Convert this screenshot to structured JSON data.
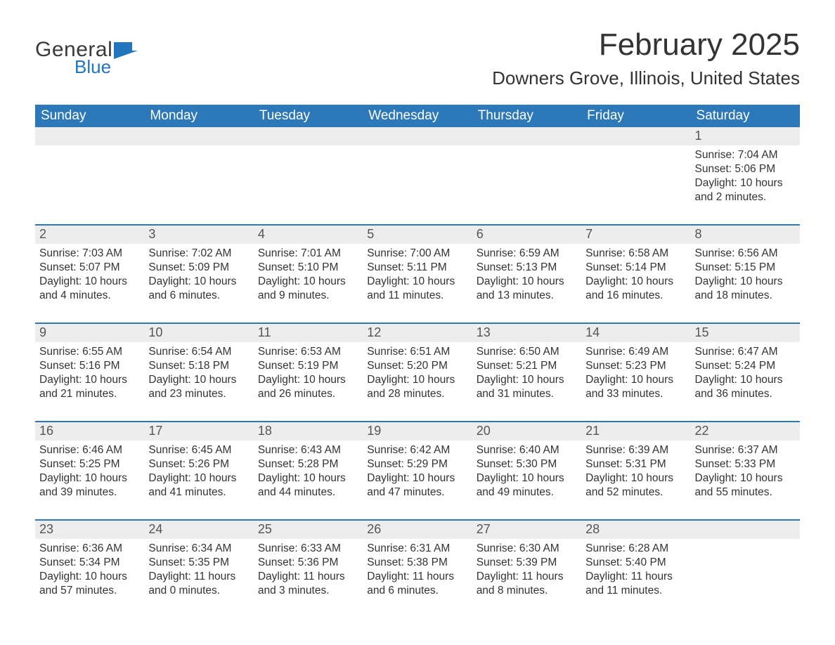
{
  "logo": {
    "word1": "General",
    "word2": "Blue",
    "flag_color": "#2176bd",
    "text_color_dark": "#3a3a3a"
  },
  "title": "February 2025",
  "location": "Downers Grove, Illinois, United States",
  "header_bg": "#2d78b9",
  "daynum_bg": "#ededed",
  "divider_color": "#2d78b9",
  "weekdays": [
    "Sunday",
    "Monday",
    "Tuesday",
    "Wednesday",
    "Thursday",
    "Friday",
    "Saturday"
  ],
  "weeks": [
    [
      null,
      null,
      null,
      null,
      null,
      null,
      {
        "n": "1",
        "sunrise": "Sunrise: 7:04 AM",
        "sunset": "Sunset: 5:06 PM",
        "daylight": "Daylight: 10 hours and 2 minutes."
      }
    ],
    [
      {
        "n": "2",
        "sunrise": "Sunrise: 7:03 AM",
        "sunset": "Sunset: 5:07 PM",
        "daylight": "Daylight: 10 hours and 4 minutes."
      },
      {
        "n": "3",
        "sunrise": "Sunrise: 7:02 AM",
        "sunset": "Sunset: 5:09 PM",
        "daylight": "Daylight: 10 hours and 6 minutes."
      },
      {
        "n": "4",
        "sunrise": "Sunrise: 7:01 AM",
        "sunset": "Sunset: 5:10 PM",
        "daylight": "Daylight: 10 hours and 9 minutes."
      },
      {
        "n": "5",
        "sunrise": "Sunrise: 7:00 AM",
        "sunset": "Sunset: 5:11 PM",
        "daylight": "Daylight: 10 hours and 11 minutes."
      },
      {
        "n": "6",
        "sunrise": "Sunrise: 6:59 AM",
        "sunset": "Sunset: 5:13 PM",
        "daylight": "Daylight: 10 hours and 13 minutes."
      },
      {
        "n": "7",
        "sunrise": "Sunrise: 6:58 AM",
        "sunset": "Sunset: 5:14 PM",
        "daylight": "Daylight: 10 hours and 16 minutes."
      },
      {
        "n": "8",
        "sunrise": "Sunrise: 6:56 AM",
        "sunset": "Sunset: 5:15 PM",
        "daylight": "Daylight: 10 hours and 18 minutes."
      }
    ],
    [
      {
        "n": "9",
        "sunrise": "Sunrise: 6:55 AM",
        "sunset": "Sunset: 5:16 PM",
        "daylight": "Daylight: 10 hours and 21 minutes."
      },
      {
        "n": "10",
        "sunrise": "Sunrise: 6:54 AM",
        "sunset": "Sunset: 5:18 PM",
        "daylight": "Daylight: 10 hours and 23 minutes."
      },
      {
        "n": "11",
        "sunrise": "Sunrise: 6:53 AM",
        "sunset": "Sunset: 5:19 PM",
        "daylight": "Daylight: 10 hours and 26 minutes."
      },
      {
        "n": "12",
        "sunrise": "Sunrise: 6:51 AM",
        "sunset": "Sunset: 5:20 PM",
        "daylight": "Daylight: 10 hours and 28 minutes."
      },
      {
        "n": "13",
        "sunrise": "Sunrise: 6:50 AM",
        "sunset": "Sunset: 5:21 PM",
        "daylight": "Daylight: 10 hours and 31 minutes."
      },
      {
        "n": "14",
        "sunrise": "Sunrise: 6:49 AM",
        "sunset": "Sunset: 5:23 PM",
        "daylight": "Daylight: 10 hours and 33 minutes."
      },
      {
        "n": "15",
        "sunrise": "Sunrise: 6:47 AM",
        "sunset": "Sunset: 5:24 PM",
        "daylight": "Daylight: 10 hours and 36 minutes."
      }
    ],
    [
      {
        "n": "16",
        "sunrise": "Sunrise: 6:46 AM",
        "sunset": "Sunset: 5:25 PM",
        "daylight": "Daylight: 10 hours and 39 minutes."
      },
      {
        "n": "17",
        "sunrise": "Sunrise: 6:45 AM",
        "sunset": "Sunset: 5:26 PM",
        "daylight": "Daylight: 10 hours and 41 minutes."
      },
      {
        "n": "18",
        "sunrise": "Sunrise: 6:43 AM",
        "sunset": "Sunset: 5:28 PM",
        "daylight": "Daylight: 10 hours and 44 minutes."
      },
      {
        "n": "19",
        "sunrise": "Sunrise: 6:42 AM",
        "sunset": "Sunset: 5:29 PM",
        "daylight": "Daylight: 10 hours and 47 minutes."
      },
      {
        "n": "20",
        "sunrise": "Sunrise: 6:40 AM",
        "sunset": "Sunset: 5:30 PM",
        "daylight": "Daylight: 10 hours and 49 minutes."
      },
      {
        "n": "21",
        "sunrise": "Sunrise: 6:39 AM",
        "sunset": "Sunset: 5:31 PM",
        "daylight": "Daylight: 10 hours and 52 minutes."
      },
      {
        "n": "22",
        "sunrise": "Sunrise: 6:37 AM",
        "sunset": "Sunset: 5:33 PM",
        "daylight": "Daylight: 10 hours and 55 minutes."
      }
    ],
    [
      {
        "n": "23",
        "sunrise": "Sunrise: 6:36 AM",
        "sunset": "Sunset: 5:34 PM",
        "daylight": "Daylight: 10 hours and 57 minutes."
      },
      {
        "n": "24",
        "sunrise": "Sunrise: 6:34 AM",
        "sunset": "Sunset: 5:35 PM",
        "daylight": "Daylight: 11 hours and 0 minutes."
      },
      {
        "n": "25",
        "sunrise": "Sunrise: 6:33 AM",
        "sunset": "Sunset: 5:36 PM",
        "daylight": "Daylight: 11 hours and 3 minutes."
      },
      {
        "n": "26",
        "sunrise": "Sunrise: 6:31 AM",
        "sunset": "Sunset: 5:38 PM",
        "daylight": "Daylight: 11 hours and 6 minutes."
      },
      {
        "n": "27",
        "sunrise": "Sunrise: 6:30 AM",
        "sunset": "Sunset: 5:39 PM",
        "daylight": "Daylight: 11 hours and 8 minutes."
      },
      {
        "n": "28",
        "sunrise": "Sunrise: 6:28 AM",
        "sunset": "Sunset: 5:40 PM",
        "daylight": "Daylight: 11 hours and 11 minutes."
      },
      null
    ]
  ]
}
